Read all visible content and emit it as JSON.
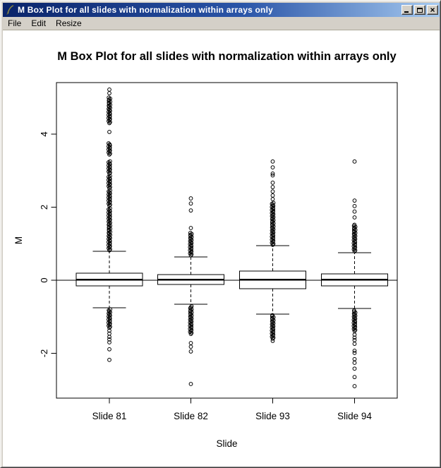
{
  "window": {
    "title": "M Box Plot for all slides with normalization within arrays only",
    "menu": [
      "File",
      "Edit",
      "Resize"
    ],
    "controls": {
      "minimize": "minimize",
      "maximize": "maximize",
      "close": "close"
    }
  },
  "chart_data": {
    "type": "boxplot",
    "title": "M Box Plot for all slides with normalization within arrays only",
    "xlabel": "Slide",
    "ylabel": "M",
    "categories": [
      "Slide 81",
      "Slide 82",
      "Slide 93",
      "Slide 94"
    ],
    "yticks": [
      {
        "v": -2,
        "label": "-2"
      },
      {
        "v": 0,
        "label": "0"
      },
      {
        "v": 2,
        "label": "2"
      },
      {
        "v": 4,
        "label": "4"
      }
    ],
    "ylim": [
      -3.3,
      5.4
    ],
    "reference_line_y": 0,
    "grid": false,
    "series": [
      {
        "name": "Slide 81",
        "whisker_low": -0.75,
        "q1": -0.15,
        "median": 0.02,
        "q3": 0.19,
        "whisker_high": 0.79,
        "outliers_high": [
          5.22,
          5.12,
          4.06
        ],
        "outlier_bands_high": [
          [
            4.3,
            5.01
          ],
          [
            3.44,
            3.77
          ],
          [
            2.92,
            3.27
          ],
          [
            2.52,
            2.87
          ],
          [
            2.04,
            2.48
          ],
          [
            0.82,
            1.99
          ]
        ],
        "outliers_low": [
          -1.38,
          -1.46,
          -1.55,
          -1.62,
          -1.7,
          -1.89,
          -2.18
        ],
        "outlier_bands_low": [
          [
            -1.3,
            -0.79
          ]
        ]
      },
      {
        "name": "Slide 82",
        "whisker_low": -0.66,
        "q1": -0.12,
        "median": 0.02,
        "q3": 0.15,
        "whisker_high": 0.64,
        "outliers_high": [
          2.24,
          2.1,
          1.91,
          1.43
        ],
        "outlier_bands_high": [
          [
            0.68,
            1.3
          ]
        ],
        "outliers_low": [
          -1.72,
          -1.82,
          -1.95,
          -2.84
        ],
        "outlier_bands_low": [
          [
            -1.47,
            -0.7
          ]
        ]
      },
      {
        "name": "Slide 93",
        "whisker_low": -0.93,
        "q1": -0.23,
        "median": 0.02,
        "q3": 0.25,
        "whisker_high": 0.95,
        "outliers_high": [
          3.25,
          3.09,
          2.92,
          2.87,
          2.67,
          2.55,
          2.43,
          2.32,
          2.22
        ],
        "outlier_bands_high": [
          [
            0.97,
            2.12
          ]
        ],
        "outliers_low": [
          -1.66
        ],
        "outlier_bands_low": [
          [
            -1.6,
            -0.95
          ]
        ]
      },
      {
        "name": "Slide 94",
        "whisker_low": -0.77,
        "q1": -0.15,
        "median": 0.02,
        "q3": 0.17,
        "whisker_high": 0.75,
        "outliers_high": [
          3.25,
          2.18,
          2.03,
          1.88,
          1.72
        ],
        "outlier_bands_high": [
          [
            0.79,
            1.52
          ]
        ],
        "outliers_low": [
          -1.49,
          -1.57,
          -1.64,
          -1.74,
          -1.93,
          -1.99,
          -2.16,
          -2.26,
          -2.42,
          -2.65,
          -2.9
        ],
        "outlier_bands_low": [
          [
            -1.39,
            -0.81
          ]
        ]
      }
    ],
    "colors": {
      "foreground": "#000000",
      "background": "#ffffff"
    }
  }
}
